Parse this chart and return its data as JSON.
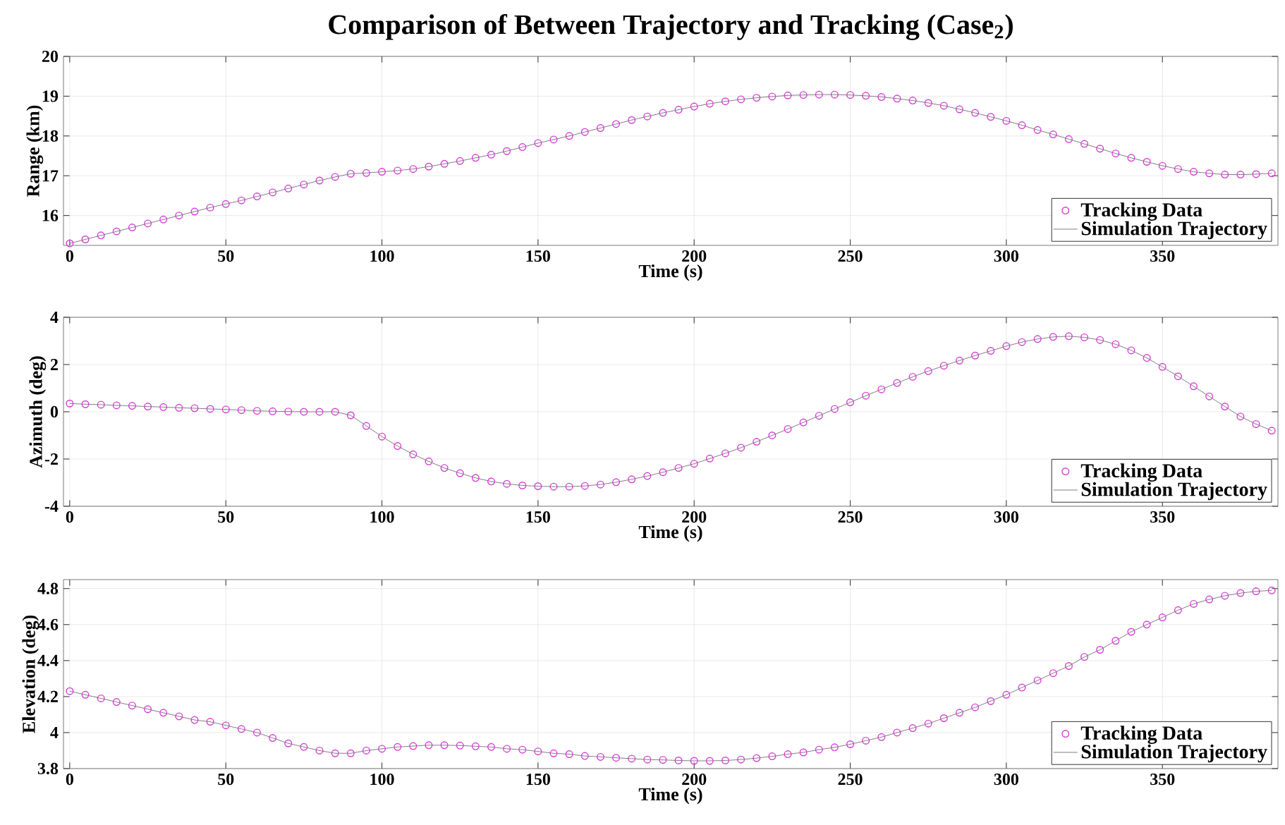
{
  "chart_data": [
    {
      "type": "line",
      "title": "Comparison of Between Trajectory and Tracking (Case$_{2}$)",
      "xlabel": "Time (s)",
      "ylabel": "Range (km)",
      "xlim": [
        -2,
        387
      ],
      "xticks": [
        0,
        50,
        100,
        150,
        200,
        250,
        300,
        350
      ],
      "ylim": [
        15.25,
        20
      ],
      "yticks": [
        16,
        17,
        18,
        19,
        20
      ],
      "grid": true,
      "legend": "bottom right",
      "x": [
        0,
        5,
        10,
        15,
        20,
        25,
        30,
        35,
        40,
        45,
        50,
        55,
        60,
        65,
        70,
        75,
        80,
        85,
        90,
        95,
        100,
        105,
        110,
        115,
        120,
        125,
        130,
        135,
        140,
        145,
        150,
        155,
        160,
        165,
        170,
        175,
        180,
        185,
        190,
        195,
        200,
        205,
        210,
        215,
        220,
        225,
        230,
        235,
        240,
        245,
        250,
        255,
        260,
        265,
        270,
        275,
        280,
        285,
        290,
        295,
        300,
        305,
        310,
        315,
        320,
        325,
        330,
        335,
        340,
        345,
        350,
        355,
        360,
        365,
        370,
        375,
        380,
        385
      ],
      "series": [
        {
          "name": "Tracking Data",
          "type": "scatter",
          "marker": "circle",
          "color": "#d63fd6",
          "values": [
            15.3,
            15.4,
            15.5,
            15.6,
            15.7,
            15.8,
            15.9,
            16.0,
            16.1,
            16.2,
            16.29,
            16.38,
            16.48,
            16.58,
            16.68,
            16.78,
            16.88,
            16.97,
            17.05,
            17.07,
            17.1,
            17.13,
            17.17,
            17.23,
            17.3,
            17.37,
            17.45,
            17.53,
            17.62,
            17.72,
            17.82,
            17.91,
            18.0,
            18.1,
            18.2,
            18.3,
            18.4,
            18.49,
            18.58,
            18.66,
            18.74,
            18.81,
            18.87,
            18.92,
            18.96,
            18.99,
            19.02,
            19.03,
            19.04,
            19.04,
            19.03,
            19.01,
            18.98,
            18.94,
            18.89,
            18.83,
            18.76,
            18.67,
            18.58,
            18.48,
            18.38,
            18.27,
            18.15,
            18.04,
            17.92,
            17.8,
            17.68,
            17.56,
            17.45,
            17.35,
            17.25,
            17.17,
            17.1,
            17.06,
            17.03,
            17.03,
            17.04,
            17.06
          ]
        },
        {
          "name": "Simulation Trajectory",
          "type": "line",
          "line_style": "solid",
          "color": "#808080",
          "values": [
            15.3,
            15.4,
            15.5,
            15.6,
            15.7,
            15.8,
            15.9,
            16.0,
            16.1,
            16.2,
            16.29,
            16.38,
            16.48,
            16.58,
            16.68,
            16.78,
            16.88,
            16.97,
            17.05,
            17.07,
            17.1,
            17.13,
            17.17,
            17.23,
            17.3,
            17.37,
            17.45,
            17.53,
            17.62,
            17.72,
            17.82,
            17.91,
            18.0,
            18.1,
            18.2,
            18.3,
            18.4,
            18.49,
            18.58,
            18.66,
            18.74,
            18.81,
            18.87,
            18.92,
            18.96,
            18.99,
            19.02,
            19.03,
            19.04,
            19.04,
            19.03,
            19.01,
            18.98,
            18.94,
            18.89,
            18.83,
            18.76,
            18.67,
            18.58,
            18.48,
            18.38,
            18.27,
            18.15,
            18.04,
            17.92,
            17.8,
            17.68,
            17.56,
            17.45,
            17.35,
            17.25,
            17.17,
            17.1,
            17.06,
            17.03,
            17.03,
            17.04,
            17.06
          ]
        }
      ]
    },
    {
      "type": "line",
      "xlabel": "Time (s)",
      "ylabel": "Azimuth (deg)",
      "xlim": [
        -2,
        387
      ],
      "xticks": [
        0,
        50,
        100,
        150,
        200,
        250,
        300,
        350
      ],
      "ylim": [
        -4,
        4
      ],
      "yticks": [
        -4,
        -2,
        0,
        2,
        4
      ],
      "grid": true,
      "legend": "bottom right",
      "x": [
        0,
        5,
        10,
        15,
        20,
        25,
        30,
        35,
        40,
        45,
        50,
        55,
        60,
        65,
        70,
        75,
        80,
        85,
        90,
        95,
        100,
        105,
        110,
        115,
        120,
        125,
        130,
        135,
        140,
        145,
        150,
        155,
        160,
        165,
        170,
        175,
        180,
        185,
        190,
        195,
        200,
        205,
        210,
        215,
        220,
        225,
        230,
        235,
        240,
        245,
        250,
        255,
        260,
        265,
        270,
        275,
        280,
        285,
        290,
        295,
        300,
        305,
        310,
        315,
        320,
        325,
        330,
        335,
        340,
        345,
        350,
        355,
        360,
        365,
        370,
        375,
        380,
        385
      ],
      "series": [
        {
          "name": "Tracking Data",
          "type": "scatter",
          "marker": "circle",
          "color": "#d63fd6",
          "values": [
            0.35,
            0.32,
            0.3,
            0.27,
            0.25,
            0.22,
            0.2,
            0.17,
            0.15,
            0.12,
            0.1,
            0.07,
            0.04,
            0.02,
            0.01,
            0.0,
            0.0,
            0.0,
            -0.15,
            -0.6,
            -1.05,
            -1.45,
            -1.8,
            -2.1,
            -2.38,
            -2.6,
            -2.8,
            -2.95,
            -3.05,
            -3.12,
            -3.15,
            -3.17,
            -3.17,
            -3.14,
            -3.08,
            -2.98,
            -2.86,
            -2.72,
            -2.56,
            -2.38,
            -2.2,
            -1.98,
            -1.76,
            -1.52,
            -1.27,
            -1.0,
            -0.73,
            -0.45,
            -0.17,
            0.12,
            0.4,
            0.68,
            0.95,
            1.22,
            1.48,
            1.72,
            1.95,
            2.17,
            2.38,
            2.58,
            2.78,
            2.95,
            3.08,
            3.17,
            3.2,
            3.15,
            3.04,
            2.86,
            2.6,
            2.28,
            1.9,
            1.5,
            1.08,
            0.65,
            0.22,
            -0.2,
            -0.52,
            -0.8
          ]
        },
        {
          "name": "Simulation Trajectory",
          "type": "line",
          "line_style": "solid",
          "color": "#808080",
          "values": [
            0.35,
            0.32,
            0.3,
            0.27,
            0.25,
            0.22,
            0.2,
            0.17,
            0.15,
            0.12,
            0.1,
            0.07,
            0.04,
            0.02,
            0.01,
            0.0,
            0.0,
            0.0,
            -0.15,
            -0.6,
            -1.05,
            -1.45,
            -1.8,
            -2.1,
            -2.38,
            -2.6,
            -2.8,
            -2.95,
            -3.05,
            -3.12,
            -3.15,
            -3.17,
            -3.17,
            -3.14,
            -3.08,
            -2.98,
            -2.86,
            -2.72,
            -2.56,
            -2.38,
            -2.2,
            -1.98,
            -1.76,
            -1.52,
            -1.27,
            -1.0,
            -0.73,
            -0.45,
            -0.17,
            0.12,
            0.4,
            0.68,
            0.95,
            1.22,
            1.48,
            1.72,
            1.95,
            2.17,
            2.38,
            2.58,
            2.78,
            2.95,
            3.08,
            3.17,
            3.2,
            3.15,
            3.04,
            2.86,
            2.6,
            2.28,
            1.9,
            1.5,
            1.08,
            0.65,
            0.22,
            -0.2,
            -0.52,
            -0.8
          ]
        }
      ]
    },
    {
      "type": "line",
      "xlabel": "Time (s)",
      "ylabel": "Elevation (deg)",
      "xlim": [
        -2,
        387
      ],
      "xticks": [
        0,
        50,
        100,
        150,
        200,
        250,
        300,
        350
      ],
      "ylim": [
        3.8,
        4.85
      ],
      "yticks": [
        3.8,
        4,
        4.2,
        4.4,
        4.6,
        4.8
      ],
      "grid": true,
      "legend": "bottom right",
      "x": [
        0,
        5,
        10,
        15,
        20,
        25,
        30,
        35,
        40,
        45,
        50,
        55,
        60,
        65,
        70,
        75,
        80,
        85,
        90,
        95,
        100,
        105,
        110,
        115,
        120,
        125,
        130,
        135,
        140,
        145,
        150,
        155,
        160,
        165,
        170,
        175,
        180,
        185,
        190,
        195,
        200,
        205,
        210,
        215,
        220,
        225,
        230,
        235,
        240,
        245,
        250,
        255,
        260,
        265,
        270,
        275,
        280,
        285,
        290,
        295,
        300,
        305,
        310,
        315,
        320,
        325,
        330,
        335,
        340,
        345,
        350,
        355,
        360,
        365,
        370,
        375,
        380,
        385
      ],
      "series": [
        {
          "name": "Tracking Data",
          "type": "scatter",
          "marker": "circle",
          "color": "#d63fd6",
          "values": [
            4.23,
            4.21,
            4.19,
            4.17,
            4.15,
            4.13,
            4.11,
            4.09,
            4.07,
            4.06,
            4.04,
            4.02,
            4.0,
            3.97,
            3.94,
            3.92,
            3.9,
            3.885,
            3.885,
            3.9,
            3.91,
            3.92,
            3.925,
            3.93,
            3.93,
            3.928,
            3.924,
            3.92,
            3.91,
            3.905,
            3.895,
            3.885,
            3.88,
            3.87,
            3.865,
            3.86,
            3.855,
            3.85,
            3.848,
            3.845,
            3.843,
            3.843,
            3.845,
            3.85,
            3.858,
            3.868,
            3.88,
            3.89,
            3.905,
            3.918,
            3.935,
            3.955,
            3.975,
            4.0,
            4.025,
            4.05,
            4.08,
            4.11,
            4.14,
            4.175,
            4.21,
            4.25,
            4.29,
            4.33,
            4.37,
            4.42,
            4.46,
            4.51,
            4.56,
            4.6,
            4.64,
            4.68,
            4.715,
            4.74,
            4.76,
            4.775,
            4.785,
            4.79
          ]
        },
        {
          "name": "Simulation Trajectory",
          "type": "line",
          "line_style": "solid",
          "color": "#808080",
          "values": [
            4.23,
            4.21,
            4.19,
            4.17,
            4.15,
            4.13,
            4.11,
            4.09,
            4.07,
            4.06,
            4.04,
            4.02,
            4.0,
            3.97,
            3.94,
            3.92,
            3.9,
            3.885,
            3.885,
            3.9,
            3.91,
            3.92,
            3.925,
            3.93,
            3.93,
            3.928,
            3.924,
            3.92,
            3.91,
            3.905,
            3.895,
            3.885,
            3.88,
            3.87,
            3.865,
            3.86,
            3.855,
            3.85,
            3.848,
            3.845,
            3.843,
            3.843,
            3.845,
            3.85,
            3.858,
            3.868,
            3.88,
            3.89,
            3.905,
            3.918,
            3.935,
            3.955,
            3.975,
            4.0,
            4.025,
            4.05,
            4.08,
            4.11,
            4.14,
            4.175,
            4.21,
            4.25,
            4.29,
            4.33,
            4.37,
            4.42,
            4.46,
            4.51,
            4.56,
            4.6,
            4.64,
            4.68,
            4.715,
            4.74,
            4.76,
            4.775,
            4.785,
            4.79
          ]
        }
      ]
    }
  ]
}
